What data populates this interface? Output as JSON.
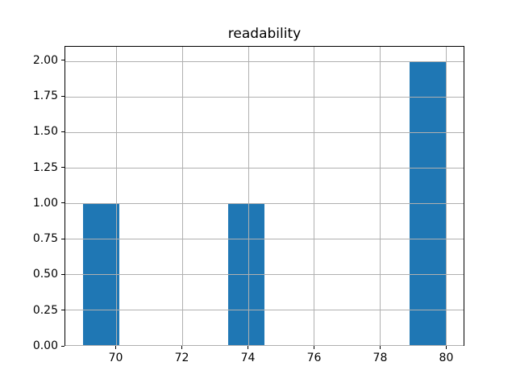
{
  "chart_data": {
    "type": "bar",
    "subtype": "histogram",
    "title": "readability",
    "xlabel": "",
    "ylabel": "",
    "bars": [
      {
        "x0": 69.0,
        "x1": 70.1,
        "count": 1
      },
      {
        "x0": 73.4,
        "x1": 74.5,
        "count": 1
      },
      {
        "x0": 78.9,
        "x1": 80.0,
        "count": 2
      }
    ],
    "bin_width": 1.1,
    "xlim": [
      68.45,
      80.55
    ],
    "ylim": [
      0,
      2.1
    ],
    "xticks": [
      70,
      72,
      74,
      76,
      78,
      80
    ],
    "xtick_labels": [
      "70",
      "72",
      "74",
      "76",
      "78",
      "80"
    ],
    "yticks": [
      0,
      0.25,
      0.5,
      0.75,
      1.0,
      1.25,
      1.5,
      1.75,
      2.0
    ],
    "ytick_labels": [
      "0.00",
      "0.25",
      "0.50",
      "0.75",
      "1.00",
      "1.25",
      "1.50",
      "1.75",
      "2.00"
    ],
    "grid": true,
    "grid_above_bars": true,
    "legend": false,
    "colors": {
      "bar": "#1f77b4",
      "grid": "#b0b0b0",
      "spine": "#000000",
      "text": "#000000",
      "background": "#ffffff"
    }
  }
}
